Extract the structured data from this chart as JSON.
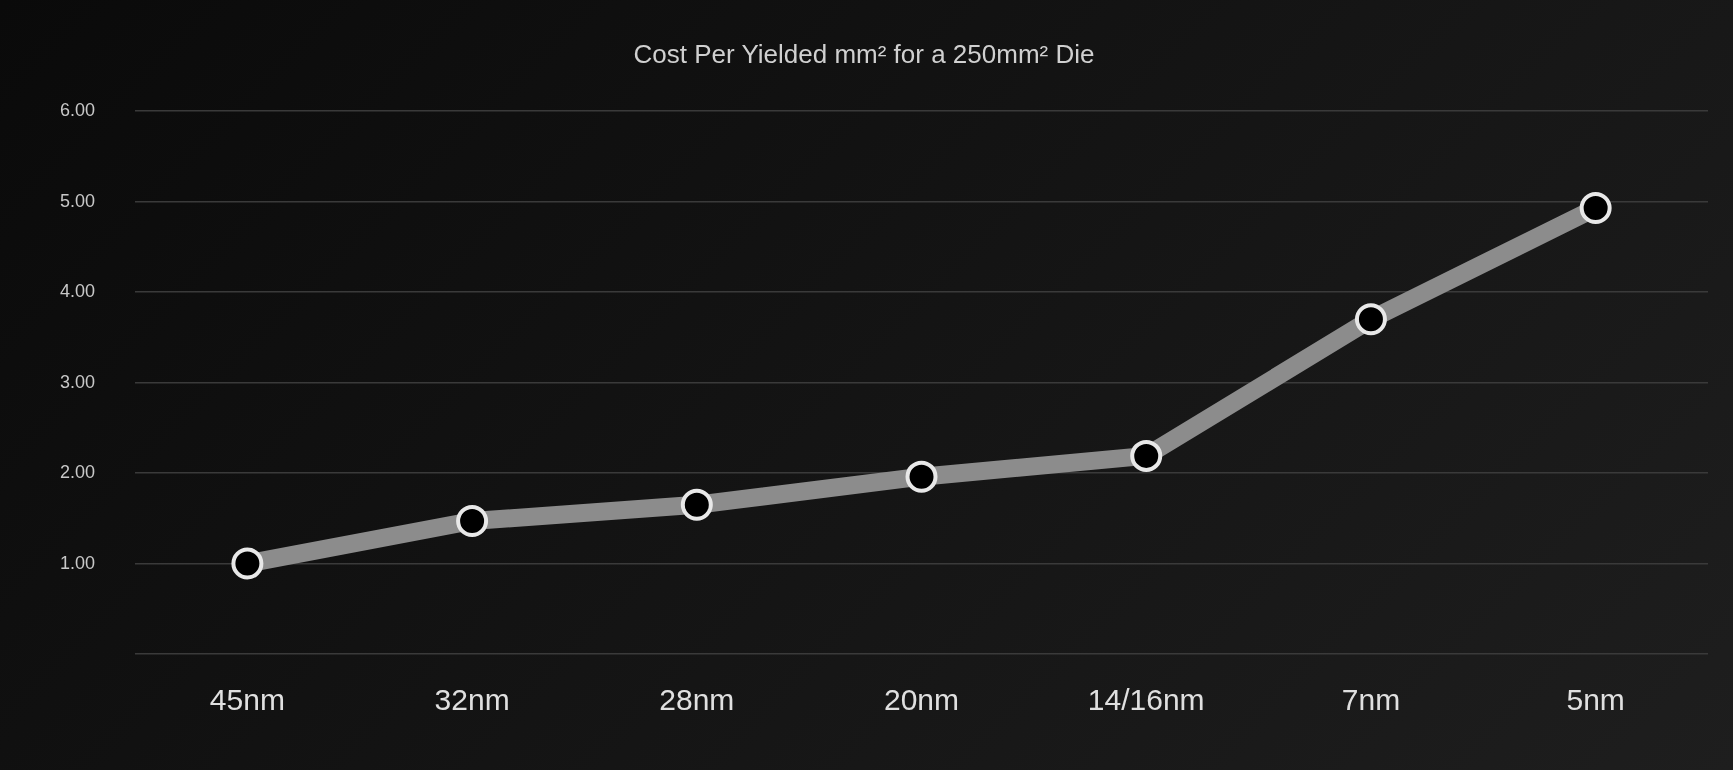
{
  "chart_data": {
    "type": "line",
    "title": "Cost Per Yielded mm² for a 250mm² Die",
    "categories": [
      "45nm",
      "32nm",
      "28nm",
      "20nm",
      "14/16nm",
      "7nm",
      "5nm"
    ],
    "series": [
      {
        "color": "#8c8c8c",
        "values": [
          1.0,
          1.47,
          1.65,
          1.96,
          2.19,
          3.7,
          4.93
        ]
      }
    ],
    "ylim": [
      0,
      6
    ],
    "yticks": [
      {
        "value": 0,
        "label": null
      },
      {
        "value": 1,
        "label": "1.00"
      },
      {
        "value": 2,
        "label": "2.00"
      },
      {
        "value": 3,
        "label": "3.00"
      },
      {
        "value": 4,
        "label": "4.00"
      },
      {
        "value": 5,
        "label": "5.00"
      },
      {
        "value": 6,
        "label": "6.00"
      }
    ],
    "grid": "y",
    "legend": false,
    "marker": "circle",
    "line_style": "solid"
  }
}
